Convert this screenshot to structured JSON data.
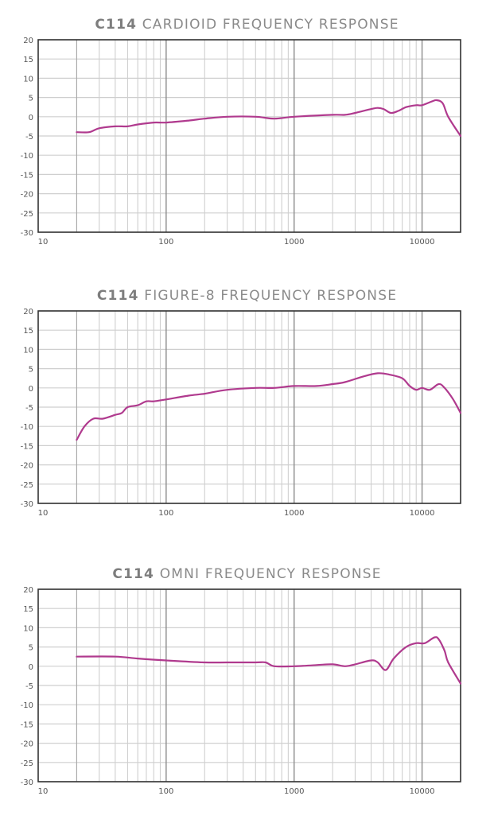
{
  "chart_data": [
    {
      "type": "line",
      "title": "C114 CARDIOID FREQUENCY RESPONSE",
      "title_model": "C114",
      "title_rest": "CARDIOID FREQUENCY RESPONSE",
      "xlabel": "",
      "ylabel": "",
      "xscale": "log",
      "xlim": [
        10,
        20000
      ],
      "ylim": [
        -30,
        20
      ],
      "x_ticks": [
        "10",
        "100",
        "1000",
        "10000"
      ],
      "y_ticks": [
        "20",
        "15",
        "10",
        "5",
        "0",
        "-5",
        "-10",
        "-15",
        "-20",
        "-25",
        "-30"
      ],
      "grid": true,
      "series": [
        {
          "name": "Cardioid",
          "color": "#b03a8e",
          "x": [
            20,
            25,
            30,
            40,
            50,
            60,
            80,
            100,
            150,
            200,
            300,
            500,
            700,
            1000,
            2000,
            2500,
            3000,
            4000,
            4500,
            5000,
            5700,
            6500,
            7500,
            9000,
            10000,
            12000,
            13000,
            14500,
            16000,
            20000
          ],
          "y": [
            -4,
            -4,
            -3,
            -2.5,
            -2.5,
            -2,
            -1.5,
            -1.5,
            -1,
            -0.5,
            0,
            0,
            -0.5,
            0,
            0.5,
            0.5,
            1,
            2,
            2.3,
            2,
            1,
            1.5,
            2.5,
            3,
            3,
            4,
            4.3,
            3.5,
            0,
            -5
          ]
        }
      ]
    },
    {
      "type": "line",
      "title": "C114 FIGURE-8 FREQUENCY RESPONSE",
      "title_model": "C114",
      "title_rest": "FIGURE-8 FREQUENCY RESPONSE",
      "xlabel": "",
      "ylabel": "",
      "xscale": "log",
      "xlim": [
        10,
        20000
      ],
      "ylim": [
        -30,
        20
      ],
      "x_ticks": [
        "10",
        "100",
        "1000",
        "10000"
      ],
      "y_ticks": [
        "20",
        "15",
        "10",
        "5",
        "0",
        "-5",
        "-10",
        "-15",
        "-20",
        "-25",
        "-30"
      ],
      "grid": true,
      "series": [
        {
          "name": "Figure-8",
          "color": "#b03a8e",
          "x": [
            20,
            23,
            27,
            32,
            40,
            45,
            50,
            60,
            70,
            80,
            100,
            150,
            200,
            300,
            500,
            700,
            1000,
            1500,
            2000,
            2500,
            3500,
            4500,
            5500,
            7000,
            8000,
            9000,
            10000,
            11500,
            13500,
            15000,
            17500,
            20000
          ],
          "y": [
            -13.5,
            -10,
            -8,
            -8,
            -7,
            -6.5,
            -5,
            -4.5,
            -3.5,
            -3.5,
            -3,
            -2,
            -1.5,
            -0.5,
            0,
            0,
            0.5,
            0.5,
            1,
            1.5,
            3,
            3.8,
            3.5,
            2.5,
            0.5,
            -0.5,
            0,
            -0.5,
            1,
            0,
            -3,
            -6.5
          ]
        }
      ]
    },
    {
      "type": "line",
      "title": "C114 OMNI FREQUENCY RESPONSE",
      "title_model": "C114",
      "title_rest": "OMNI FREQUENCY RESPONSE",
      "xlabel": "",
      "ylabel": "",
      "xscale": "log",
      "xlim": [
        10,
        20000
      ],
      "ylim": [
        -30,
        20
      ],
      "x_ticks": [
        "10",
        "100",
        "1000",
        "10000"
      ],
      "y_ticks": [
        "20",
        "15",
        "10",
        "5",
        "0",
        "-5",
        "-10",
        "-15",
        "-20",
        "-25",
        "-30"
      ],
      "grid": true,
      "series": [
        {
          "name": "Omni",
          "color": "#b03a8e",
          "x": [
            20,
            40,
            60,
            100,
            200,
            300,
            500,
            600,
            700,
            1000,
            1500,
            2000,
            2500,
            3000,
            4000,
            4500,
            5200,
            6000,
            7500,
            9000,
            10500,
            12500,
            13500,
            15000,
            16000,
            20000
          ],
          "y": [
            2.5,
            2.5,
            2,
            1.5,
            1,
            1,
            1,
            1,
            0,
            0,
            0.3,
            0.5,
            0,
            0.5,
            1.5,
            1,
            -1,
            2,
            5,
            6,
            6,
            7.5,
            7,
            4,
            1,
            -4.5
          ]
        }
      ]
    }
  ],
  "colors": {
    "curve": "#b03a8e",
    "grid_minor": "#cfcfcf",
    "grid_decade": "#8c8c8c",
    "border": "#333333",
    "title": "#8a8a8a"
  }
}
